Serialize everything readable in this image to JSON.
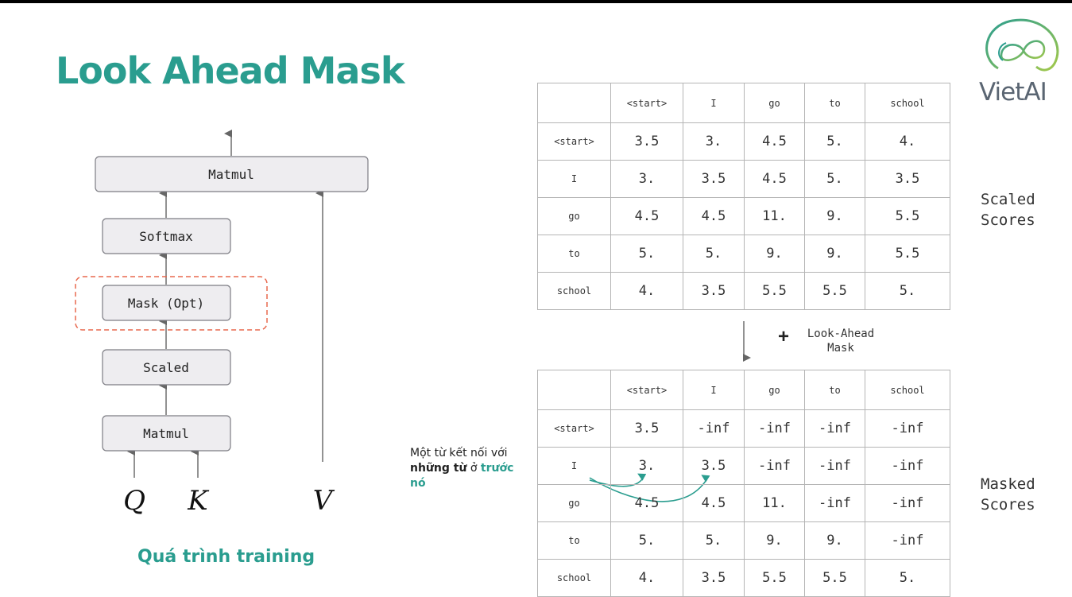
{
  "title": "Look Ahead Mask",
  "diagram": {
    "boxes": [
      "Matmul",
      "Softmax",
      "Mask (Opt)",
      "Scaled",
      "Matmul"
    ],
    "inputs": [
      "Q",
      "K",
      "V"
    ],
    "caption": "Quá trình training"
  },
  "scaled_scores": {
    "headers": [
      "",
      "<start>",
      "I",
      "go",
      "to",
      "school"
    ],
    "rows": [
      [
        "<start>",
        "3.5",
        "3.",
        "4.5",
        "5.",
        "4."
      ],
      [
        "I",
        "3.",
        "3.5",
        "4.5",
        "5.",
        "3.5"
      ],
      [
        "go",
        "4.5",
        "4.5",
        "11.",
        "9.",
        "5.5"
      ],
      [
        "to",
        "5.",
        "5.",
        "9.",
        "9.",
        "5.5"
      ],
      [
        "school",
        "4.",
        "3.5",
        "5.5",
        "5.5",
        "5."
      ]
    ],
    "label_line1": "Scaled",
    "label_line2": "Scores"
  },
  "operation": {
    "plus": "+",
    "line1": "Look-Ahead",
    "line2": "Mask"
  },
  "masked_scores": {
    "headers": [
      "",
      "<start>",
      "I",
      "go",
      "to",
      "school"
    ],
    "rows": [
      [
        "<start>",
        "3.5",
        "-inf",
        "-inf",
        "-inf",
        "-inf"
      ],
      [
        "I",
        "3.",
        "3.5",
        "-inf",
        "-inf",
        "-inf"
      ],
      [
        "go",
        "4.5",
        "4.5",
        "11.",
        "-inf",
        "-inf"
      ],
      [
        "to",
        "5.",
        "5.",
        "9.",
        "9.",
        "-inf"
      ],
      [
        "school",
        "4.",
        "3.5",
        "5.5",
        "5.5",
        "5."
      ]
    ],
    "label_line1": "Masked",
    "label_line2": "Scores"
  },
  "note": {
    "part1": "Một từ kết nối với ",
    "part2": "những từ",
    "part3": " ở ",
    "part4": "trước nó"
  },
  "logo": {
    "text": "VietAI"
  },
  "colors": {
    "accent": "#2a9d8f",
    "mask_border": "#e8694f",
    "box_fill": "#eeedf0",
    "box_border": "#7d7d84"
  }
}
